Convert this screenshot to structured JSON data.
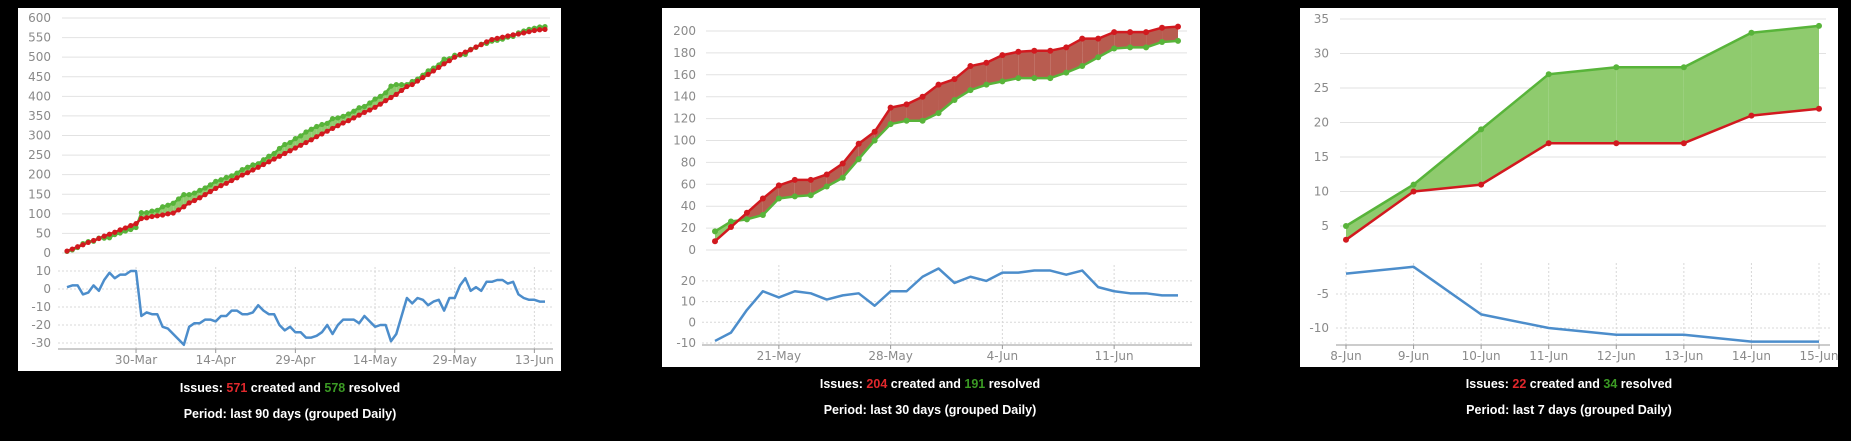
{
  "colors": {
    "created": "#d2191f",
    "resolved": "#58b43a",
    "created_fill": "#b85c50",
    "resolved_fill": "#8fcb6e",
    "difference": "#4c8dcb",
    "grid": "#e2e2e2"
  },
  "chart_data": [
    {
      "type": "area",
      "x": [
        "17-Mar",
        "18-Mar",
        "19-Mar",
        "20-Mar",
        "21-Mar",
        "22-Mar",
        "23-Mar",
        "24-Mar",
        "25-Mar",
        "26-Mar",
        "27-Mar",
        "28-Mar",
        "29-Mar",
        "30-Mar",
        "31-Mar",
        "1-Apr",
        "2-Apr",
        "3-Apr",
        "4-Apr",
        "5-Apr",
        "6-Apr",
        "7-Apr",
        "8-Apr",
        "9-Apr",
        "10-Apr",
        "11-Apr",
        "12-Apr",
        "13-Apr",
        "14-Apr",
        "15-Apr",
        "16-Apr",
        "17-Apr",
        "18-Apr",
        "19-Apr",
        "20-Apr",
        "21-Apr",
        "22-Apr",
        "23-Apr",
        "24-Apr",
        "25-Apr",
        "26-Apr",
        "27-Apr",
        "28-Apr",
        "29-Apr",
        "30-Apr",
        "1-May",
        "2-May",
        "3-May",
        "4-May",
        "5-May",
        "6-May",
        "7-May",
        "8-May",
        "9-May",
        "10-May",
        "11-May",
        "12-May",
        "13-May",
        "14-May",
        "15-May",
        "16-May",
        "17-May",
        "18-May",
        "19-May",
        "20-May",
        "21-May",
        "22-May",
        "23-May",
        "24-May",
        "25-May",
        "26-May",
        "27-May",
        "28-May",
        "29-May",
        "30-May",
        "31-May",
        "1-Jun",
        "2-Jun",
        "3-Jun",
        "4-Jun",
        "5-Jun",
        "6-Jun",
        "7-Jun",
        "8-Jun",
        "9-Jun",
        "10-Jun",
        "11-Jun",
        "12-Jun",
        "13-Jun",
        "14-Jun",
        "15-Jun"
      ],
      "x_ticks": [
        "30-Mar",
        "14-Apr",
        "29-Apr",
        "14-May",
        "29-May",
        "13-Jun"
      ],
      "y_ticks": [
        0,
        50,
        100,
        150,
        200,
        250,
        300,
        350,
        400,
        450,
        500,
        550,
        600
      ],
      "ylim": [
        0,
        600
      ],
      "diff_ticks": [
        10,
        0,
        -10,
        -20,
        -30
      ],
      "series": [
        {
          "key": "created",
          "values": [
            5,
            10,
            16,
            21,
            27,
            32,
            37,
            43,
            48,
            53,
            59,
            64,
            70,
            75,
            88,
            90,
            93,
            95,
            97,
            100,
            102,
            110,
            118,
            128,
            134,
            141,
            149,
            157,
            165,
            172,
            178,
            185,
            192,
            199,
            205,
            212,
            219,
            226,
            233,
            240,
            247,
            254,
            261,
            268,
            275,
            282,
            289,
            297,
            304,
            311,
            318,
            325,
            332,
            338,
            345,
            352,
            359,
            365,
            372,
            380,
            389,
            397,
            405,
            415,
            425,
            430,
            439,
            448,
            456,
            465,
            474,
            483,
            491,
            500,
            507,
            513,
            519,
            526,
            532,
            539,
            545,
            548,
            551,
            554,
            557,
            559,
            562,
            565,
            568,
            570,
            571
          ]
        },
        {
          "key": "resolved",
          "values": [
            4,
            8,
            14,
            24,
            29,
            30,
            38,
            38,
            39,
            47,
            51,
            56,
            60,
            65,
            103,
            103,
            107,
            109,
            118,
            122,
            127,
            138,
            149,
            149,
            153,
            160,
            166,
            174,
            183,
            187,
            193,
            197,
            204,
            213,
            219,
            225,
            228,
            238,
            247,
            254,
            267,
            277,
            282,
            292,
            299,
            309,
            316,
            323,
            328,
            331,
            343,
            345,
            349,
            355,
            362,
            371,
            374,
            383,
            393,
            400,
            409,
            426,
            430,
            430,
            430,
            438,
            444,
            454,
            465,
            472,
            480,
            495,
            496,
            505,
            505,
            507,
            520,
            525,
            533,
            535,
            541,
            543,
            546,
            551,
            553,
            562,
            567,
            571,
            574,
            577,
            578
          ]
        }
      ],
      "summary": {
        "prefix": "Issues: ",
        "created": "571",
        "middle": " created and ",
        "resolved": "578",
        "suffix": " resolved"
      },
      "period": {
        "prefix": "Period: last ",
        "days": "90",
        "middle": " days (grouped ",
        "group": "Daily",
        "suffix": ")"
      }
    },
    {
      "type": "area",
      "x": [
        "17-May",
        "18-May",
        "19-May",
        "20-May",
        "21-May",
        "22-May",
        "23-May",
        "24-May",
        "25-May",
        "26-May",
        "27-May",
        "28-May",
        "29-May",
        "30-May",
        "31-May",
        "1-Jun",
        "2-Jun",
        "3-Jun",
        "4-Jun",
        "5-Jun",
        "6-Jun",
        "7-Jun",
        "8-Jun",
        "9-Jun",
        "10-Jun",
        "11-Jun",
        "12-Jun",
        "13-Jun",
        "14-Jun",
        "15-Jun"
      ],
      "x_ticks": [
        "21-May",
        "28-May",
        "4-Jun",
        "11-Jun"
      ],
      "y_ticks": [
        0,
        20,
        40,
        60,
        80,
        100,
        120,
        140,
        160,
        180,
        200
      ],
      "ylim": [
        0,
        200
      ],
      "diff_ticks": [
        20,
        10,
        0,
        -10
      ],
      "series": [
        {
          "key": "created",
          "values": [
            8,
            21,
            34,
            47,
            59,
            64,
            64,
            69,
            79,
            97,
            108,
            130,
            133,
            140,
            151,
            156,
            168,
            171,
            178,
            181,
            182,
            182,
            185,
            193,
            193,
            199,
            199,
            199,
            203,
            204
          ]
        },
        {
          "key": "resolved",
          "values": [
            17,
            26,
            28,
            32,
            47,
            49,
            50,
            58,
            66,
            83,
            100,
            115,
            118,
            118,
            125,
            137,
            146,
            151,
            154,
            157,
            157,
            157,
            162,
            168,
            176,
            184,
            185,
            185,
            190,
            191
          ]
        }
      ],
      "summary": {
        "prefix": "Issues: ",
        "created": "204",
        "middle": " created and ",
        "resolved": "191",
        "suffix": " resolved"
      },
      "period": {
        "prefix": "Period: last ",
        "days": "30",
        "middle": " days (grouped ",
        "group": "Daily",
        "suffix": ")"
      }
    },
    {
      "type": "area",
      "x": [
        "8-Jun",
        "9-Jun",
        "10-Jun",
        "11-Jun",
        "12-Jun",
        "13-Jun",
        "14-Jun",
        "15-Jun"
      ],
      "x_ticks": [
        "8-Jun",
        "9-Jun",
        "10-Jun",
        "11-Jun",
        "12-Jun",
        "13-Jun",
        "14-Jun",
        "15-Jun"
      ],
      "y_ticks": [
        5,
        10,
        15,
        20,
        25,
        30,
        35
      ],
      "ylim": [
        0,
        35
      ],
      "diff_ticks": [
        -5,
        -10
      ],
      "series": [
        {
          "key": "created",
          "values": [
            3,
            10,
            11,
            17,
            17,
            17,
            21,
            22
          ]
        },
        {
          "key": "resolved",
          "values": [
            5,
            11,
            19,
            27,
            28,
            28,
            33,
            34
          ]
        }
      ],
      "summary": {
        "prefix": "Issues: ",
        "created": "22",
        "middle": " created and ",
        "resolved": "34",
        "suffix": " resolved"
      },
      "period": {
        "prefix": "Period: last ",
        "days": "7",
        "middle": " days (grouped ",
        "group": "Daily",
        "suffix": ")"
      }
    }
  ]
}
